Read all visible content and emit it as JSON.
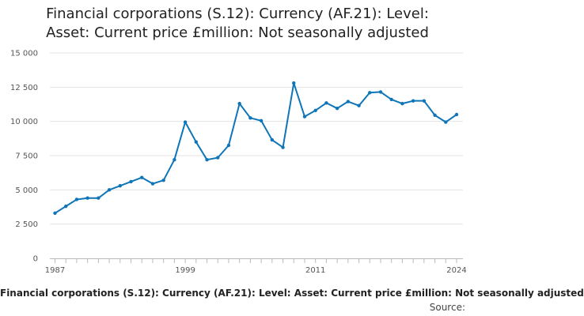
{
  "chart_data": {
    "type": "line",
    "title_lines": [
      "Financial corporations (S.12): Currency (AF.21): Level:",
      "Asset: Current price £million: Not seasonally adjusted"
    ],
    "xlabel": "Financial corporations (S.12): Currency (AF.21): Level: Asset: Current price £million: Not seasonally adjusted",
    "ylabel": "",
    "source_label": "Source:",
    "x_tick_labels": [
      "1987",
      "1999",
      "2011",
      "2024"
    ],
    "y_tick_labels": [
      "0",
      "2 500",
      "5 000",
      "7 500",
      "10 000",
      "12 500",
      "15 000"
    ],
    "ylim": [
      0,
      15000
    ],
    "xlim": [
      1987,
      2024
    ],
    "grid": true,
    "color": "#0e76b8",
    "series": [
      {
        "x": [
          1987,
          1988,
          1989,
          1990,
          1991,
          1992,
          1993,
          1994,
          1995,
          1996,
          1997,
          1998,
          1999,
          2000,
          2001,
          2002,
          2003,
          2004,
          2005,
          2006,
          2007,
          2008,
          2009,
          2010,
          2011,
          2012,
          2013,
          2014,
          2015,
          2016,
          2017,
          2018,
          2019,
          2020,
          2021,
          2022,
          2023,
          2024
        ],
        "values": [
          3300,
          3800,
          4300,
          4400,
          4400,
          5000,
          5300,
          5600,
          5900,
          5450,
          5700,
          7200,
          9950,
          8500,
          7200,
          7350,
          8250,
          11300,
          10250,
          10050,
          8650,
          8100,
          12800,
          10350,
          10800,
          11350,
          10950,
          11450,
          11150,
          12100,
          12150,
          11600,
          11300,
          11500,
          11500,
          10450,
          9950,
          10500
        ]
      }
    ]
  }
}
